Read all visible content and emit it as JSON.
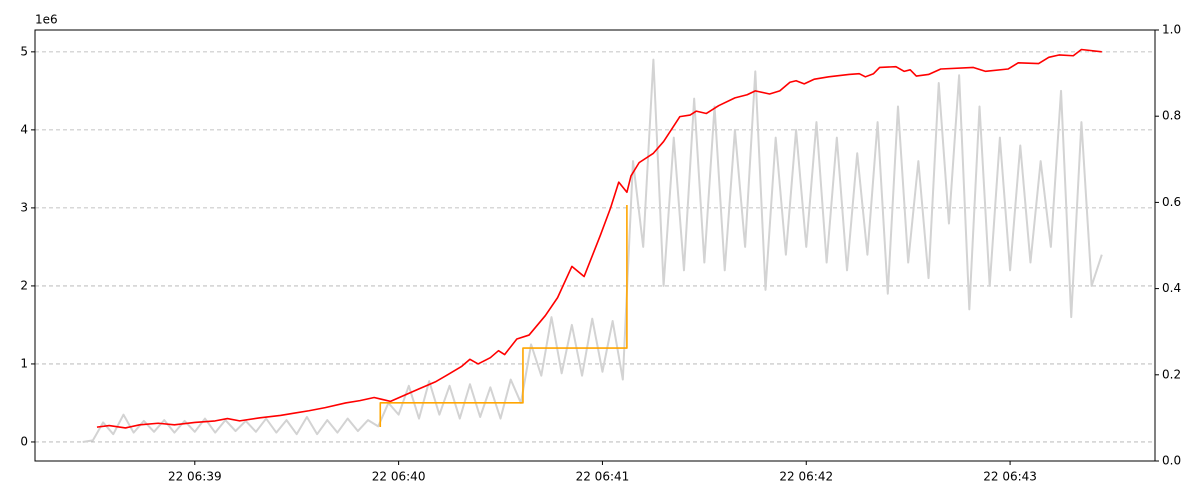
{
  "chart_data": {
    "type": "line",
    "y_offset_label": "1e6",
    "xlim": [
      38.216,
      43.711
    ],
    "xticks": [
      {
        "value": 39,
        "label": "22 06:39"
      },
      {
        "value": 40,
        "label": "22 06:40"
      },
      {
        "value": 41,
        "label": "22 06:41"
      },
      {
        "value": 42,
        "label": "22 06:42"
      },
      {
        "value": 43,
        "label": "22 06:43"
      }
    ],
    "ylim": [
      -0.244,
      5.28
    ],
    "yticks": [
      0,
      1,
      2,
      3,
      4,
      5
    ],
    "y2lim": [
      0,
      1
    ],
    "y2ticks": [
      {
        "value": 0,
        "label": "0.0"
      },
      0.2,
      0.4,
      0.6,
      0.8,
      {
        "value": 1,
        "label": "1.0"
      }
    ],
    "grid": true,
    "series": [
      {
        "color": "#d3d3d3",
        "x": [
          38.45,
          38.5,
          38.55,
          38.6,
          38.65,
          38.7,
          38.75,
          38.8,
          38.85,
          38.9,
          38.95,
          39.0,
          39.05,
          39.1,
          39.15,
          39.2,
          39.25,
          39.3,
          39.35,
          39.4,
          39.45,
          39.5,
          39.55,
          39.6,
          39.65,
          39.7,
          39.75,
          39.8,
          39.85,
          39.9,
          39.95,
          40.0,
          40.05,
          40.1,
          40.15,
          40.2,
          40.25,
          40.3,
          40.35,
          40.4,
          40.45,
          40.5,
          40.55,
          40.6,
          40.65,
          40.7,
          40.75,
          40.8,
          40.85,
          40.9,
          40.95,
          41.0,
          41.05,
          41.1,
          41.15,
          41.2,
          41.25,
          41.3,
          41.35,
          41.4,
          41.45,
          41.5,
          41.55,
          41.6,
          41.65,
          41.7,
          41.75,
          41.8,
          41.85,
          41.9,
          41.95,
          42.0,
          42.05,
          42.1,
          42.15,
          42.2,
          42.25,
          42.3,
          42.35,
          42.4,
          42.45,
          42.5,
          42.55,
          42.6,
          42.65,
          42.7,
          42.75,
          42.8,
          42.85,
          42.9,
          42.95,
          43.0,
          43.05,
          43.1,
          43.15,
          43.2,
          43.25,
          43.3,
          43.35,
          43.4,
          43.45
        ],
        "values": [
          0,
          0.02,
          0.25,
          0.1,
          0.35,
          0.12,
          0.27,
          0.13,
          0.28,
          0.12,
          0.27,
          0.13,
          0.3,
          0.12,
          0.28,
          0.14,
          0.27,
          0.13,
          0.3,
          0.12,
          0.28,
          0.1,
          0.32,
          0.1,
          0.28,
          0.12,
          0.3,
          0.14,
          0.28,
          0.2,
          0.5,
          0.35,
          0.72,
          0.3,
          0.78,
          0.35,
          0.72,
          0.3,
          0.74,
          0.32,
          0.7,
          0.3,
          0.8,
          0.5,
          1.25,
          0.85,
          1.6,
          0.88,
          1.5,
          0.85,
          1.58,
          0.9,
          1.55,
          0.8,
          3.6,
          2.5,
          4.9,
          2.0,
          3.9,
          2.2,
          4.4,
          2.3,
          4.3,
          2.2,
          4.0,
          2.5,
          4.75,
          1.95,
          3.9,
          2.4,
          4.0,
          2.5,
          4.1,
          2.3,
          3.9,
          2.2,
          3.7,
          2.4,
          4.1,
          1.9,
          4.3,
          2.3,
          3.6,
          2.1,
          4.6,
          2.8,
          4.7,
          1.7,
          4.3,
          2.0,
          3.9,
          2.2,
          3.8,
          2.3,
          3.6,
          2.5,
          4.5,
          1.6,
          4.1,
          2.0,
          2.4
        ]
      },
      {
        "color": "#ff0000",
        "x": [
          38.52,
          38.58,
          38.66,
          38.73,
          38.82,
          38.9,
          39.0,
          39.1,
          39.16,
          39.22,
          39.32,
          39.42,
          39.49,
          39.56,
          39.64,
          39.74,
          39.81,
          39.88,
          39.96,
          40.03,
          40.1,
          40.18,
          40.24,
          40.31,
          40.35,
          40.39,
          40.45,
          40.49,
          40.52,
          40.58,
          40.64,
          40.72,
          40.78,
          40.85,
          40.91,
          40.99,
          41.04,
          41.08,
          41.12,
          41.14,
          41.18,
          41.25,
          41.3,
          41.38,
          41.43,
          41.46,
          41.51,
          41.57,
          41.65,
          41.71,
          41.75,
          41.82,
          41.87,
          41.92,
          41.95,
          41.99,
          42.04,
          42.11,
          42.21,
          42.26,
          42.29,
          42.33,
          42.36,
          42.44,
          42.48,
          42.51,
          42.54,
          42.6,
          42.66,
          42.82,
          42.88,
          42.99,
          43.04,
          43.14,
          43.19,
          43.24,
          43.31,
          43.35,
          43.45
        ],
        "values": [
          0.19,
          0.21,
          0.18,
          0.22,
          0.24,
          0.22,
          0.25,
          0.27,
          0.3,
          0.27,
          0.31,
          0.34,
          0.37,
          0.4,
          0.44,
          0.5,
          0.53,
          0.57,
          0.52,
          0.6,
          0.68,
          0.77,
          0.86,
          0.97,
          1.06,
          1.0,
          1.08,
          1.17,
          1.12,
          1.32,
          1.37,
          1.62,
          1.85,
          2.25,
          2.12,
          2.65,
          3.0,
          3.33,
          3.2,
          3.41,
          3.58,
          3.7,
          3.85,
          4.17,
          4.19,
          4.24,
          4.21,
          4.31,
          4.41,
          4.45,
          4.5,
          4.46,
          4.5,
          4.61,
          4.63,
          4.59,
          4.65,
          4.68,
          4.71,
          4.72,
          4.68,
          4.72,
          4.8,
          4.81,
          4.75,
          4.77,
          4.69,
          4.71,
          4.78,
          4.8,
          4.75,
          4.78,
          4.86,
          4.85,
          4.93,
          4.96,
          4.95,
          5.03,
          5.0
        ]
      },
      {
        "color": "#ffa500",
        "axis": "y2",
        "drawstyle": "steps-post",
        "x": [
          39.91,
          39.91,
          40.61,
          41.12
        ],
        "values": [
          0.079,
          0.135,
          0.262,
          0.594
        ]
      }
    ]
  }
}
